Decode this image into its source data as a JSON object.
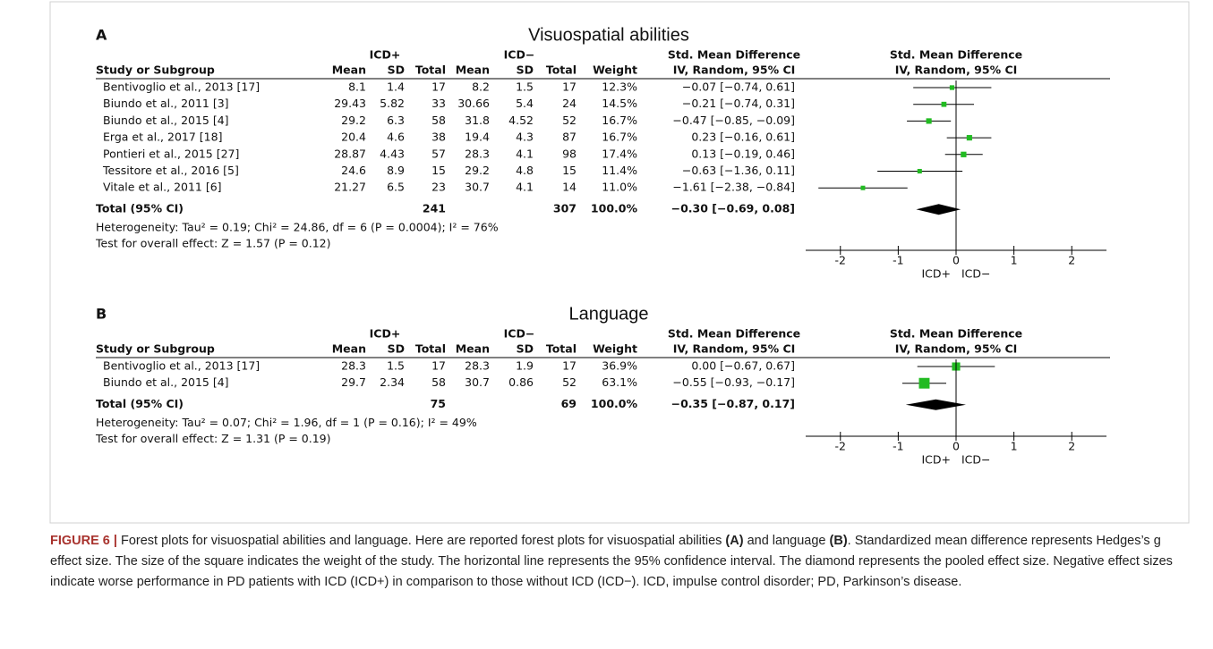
{
  "chart_data": [
    {
      "type": "forest",
      "panel": "A",
      "title": "Visuospatial abilities",
      "group_headers": [
        "ICD+",
        "ICD−",
        "Std. Mean Difference"
      ],
      "columns": [
        "Study or Subgroup",
        "Mean",
        "SD",
        "Total",
        "Mean",
        "SD",
        "Total",
        "Weight",
        "IV, Random, 95% CI"
      ],
      "plot_header": [
        "Std. Mean Difference",
        "IV, Random, 95% CI"
      ],
      "color": "#22bb22",
      "studies": [
        {
          "name": "Bentivoglio et al., 2013 [17]",
          "icd_pos": {
            "mean": 8.1,
            "sd": 1.4,
            "total": 17
          },
          "icd_neg": {
            "mean": 8.2,
            "sd": 1.5,
            "total": 17
          },
          "weight": 12.3,
          "weight_label": "12.3%",
          "smd": -0.07,
          "ci": [
            -0.74,
            0.61
          ],
          "smd_label": "−0.07 [−0.74, 0.61]"
        },
        {
          "name": "Biundo et al., 2011 [3]",
          "icd_pos": {
            "mean": 29.43,
            "sd": 5.82,
            "total": 33
          },
          "icd_neg": {
            "mean": 30.66,
            "sd": 5.4,
            "total": 24
          },
          "weight": 14.5,
          "weight_label": "14.5%",
          "smd": -0.21,
          "ci": [
            -0.74,
            0.31
          ],
          "smd_label": "−0.21 [−0.74, 0.31]"
        },
        {
          "name": "Biundo et al., 2015 [4]",
          "icd_pos": {
            "mean": 29.2,
            "sd": 6.3,
            "total": 58
          },
          "icd_neg": {
            "mean": 31.8,
            "sd": 4.52,
            "total": 52
          },
          "weight": 16.7,
          "weight_label": "16.7%",
          "smd": -0.47,
          "ci": [
            -0.85,
            -0.09
          ],
          "smd_label": "−0.47 [−0.85, −0.09]"
        },
        {
          "name": "Erga et al., 2017 [18]",
          "icd_pos": {
            "mean": 20.4,
            "sd": 4.6,
            "total": 38
          },
          "icd_neg": {
            "mean": 19.4,
            "sd": 4.3,
            "total": 87
          },
          "weight": 16.7,
          "weight_label": "16.7%",
          "smd": 0.23,
          "ci": [
            -0.16,
            0.61
          ],
          "smd_label": "0.23 [−0.16, 0.61]"
        },
        {
          "name": "Pontieri et al., 2015 [27]",
          "icd_pos": {
            "mean": 28.87,
            "sd": 4.43,
            "total": 57
          },
          "icd_neg": {
            "mean": 28.3,
            "sd": 4.1,
            "total": 98
          },
          "weight": 17.4,
          "weight_label": "17.4%",
          "smd": 0.13,
          "ci": [
            -0.19,
            0.46
          ],
          "smd_label": "0.13 [−0.19, 0.46]"
        },
        {
          "name": "Tessitore et al., 2016 [5]",
          "icd_pos": {
            "mean": 24.6,
            "sd": 8.9,
            "total": 15
          },
          "icd_neg": {
            "mean": 29.2,
            "sd": 4.8,
            "total": 15
          },
          "weight": 11.4,
          "weight_label": "11.4%",
          "smd": -0.63,
          "ci": [
            -1.36,
            0.11
          ],
          "smd_label": "−0.63 [−1.36, 0.11]"
        },
        {
          "name": "Vitale et al., 2011 [6]",
          "icd_pos": {
            "mean": 21.27,
            "sd": 6.5,
            "total": 23
          },
          "icd_neg": {
            "mean": 30.7,
            "sd": 4.1,
            "total": 14
          },
          "weight": 11.0,
          "weight_label": "11.0%",
          "smd": -1.61,
          "ci": [
            -2.38,
            -0.84
          ],
          "smd_label": "−1.61 [−2.38, −0.84]"
        }
      ],
      "total": {
        "label": "Total (95% CI)",
        "n_pos": 241,
        "n_neg": 307,
        "weight_label": "100.0%",
        "smd": -0.3,
        "ci": [
          -0.69,
          0.08
        ],
        "smd_label": "−0.30 [−0.69, 0.08]"
      },
      "heterogeneity": "Heterogeneity: Tau² = 0.19; Chi² = 24.86, df = 6 (P = 0.0004); I² = 76%",
      "overall_effect": "Test for overall effect: Z = 1.57 (P = 0.12)",
      "xlim": [
        -2.6,
        2.6
      ],
      "xticks": [
        -2,
        -1,
        0,
        1,
        2
      ],
      "direction_labels": [
        "ICD+",
        "ICD−"
      ]
    },
    {
      "type": "forest",
      "panel": "B",
      "title": "Language",
      "group_headers": [
        "ICD+",
        "ICD−",
        "Std. Mean Difference"
      ],
      "columns": [
        "Study or Subgroup",
        "Mean",
        "SD",
        "Total",
        "Mean",
        "SD",
        "Total",
        "Weight",
        "IV, Random, 95% CI"
      ],
      "plot_header": [
        "Std. Mean Difference",
        "IV, Random, 95% CI"
      ],
      "color": "#22bb22",
      "studies": [
        {
          "name": "Bentivoglio et al., 2013 [17]",
          "icd_pos": {
            "mean": 28.3,
            "sd": 1.5,
            "total": 17
          },
          "icd_neg": {
            "mean": 28.3,
            "sd": 1.9,
            "total": 17
          },
          "weight": 36.9,
          "weight_label": "36.9%",
          "smd": 0.0,
          "ci": [
            -0.67,
            0.67
          ],
          "smd_label": "0.00 [−0.67, 0.67]"
        },
        {
          "name": "Biundo et al., 2015 [4]",
          "icd_pos": {
            "mean": 29.7,
            "sd": 2.34,
            "total": 58
          },
          "icd_neg": {
            "mean": 30.7,
            "sd": 0.86,
            "total": 52
          },
          "weight": 63.1,
          "weight_label": "63.1%",
          "smd": -0.55,
          "ci": [
            -0.93,
            -0.17
          ],
          "smd_label": "−0.55 [−0.93, −0.17]"
        }
      ],
      "total": {
        "label": "Total (95% CI)",
        "n_pos": 75,
        "n_neg": 69,
        "weight_label": "100.0%",
        "smd": -0.35,
        "ci": [
          -0.87,
          0.17
        ],
        "smd_label": "−0.35 [−0.87, 0.17]"
      },
      "heterogeneity": "Heterogeneity: Tau² = 0.07; Chi² = 1.96, df = 1 (P = 0.16); I² = 49%",
      "overall_effect": "Test for overall effect: Z = 1.31 (P = 0.19)",
      "xlim": [
        -2.6,
        2.6
      ],
      "xticks": [
        -2,
        -1,
        0,
        1,
        2
      ],
      "direction_labels": [
        "ICD+",
        "ICD−"
      ]
    }
  ],
  "caption": [
    {
      "text": "FIGURE 6 |",
      "bold": true
    },
    {
      "text": " Forest plots for visuospatial abilities and language. Here are reported forest plots for visuospatial abilities ",
      "bold": false
    },
    {
      "text": "(A)",
      "bold": true
    },
    {
      "text": " and language ",
      "bold": false
    },
    {
      "text": "(B)",
      "bold": true
    },
    {
      "text": ". Standardized mean difference represents Hedges’s g effect size. The size of the square indicates the weight of the study. The horizontal line represents the 95% confidence interval. The diamond represents the pooled effect size. Negative effect sizes indicate worse performance in PD patients with ICD (ICD+) in comparison to those without ICD (ICD−). ICD, impulse control disorder; PD, Parkinson’s disease.",
      "bold": false
    }
  ]
}
